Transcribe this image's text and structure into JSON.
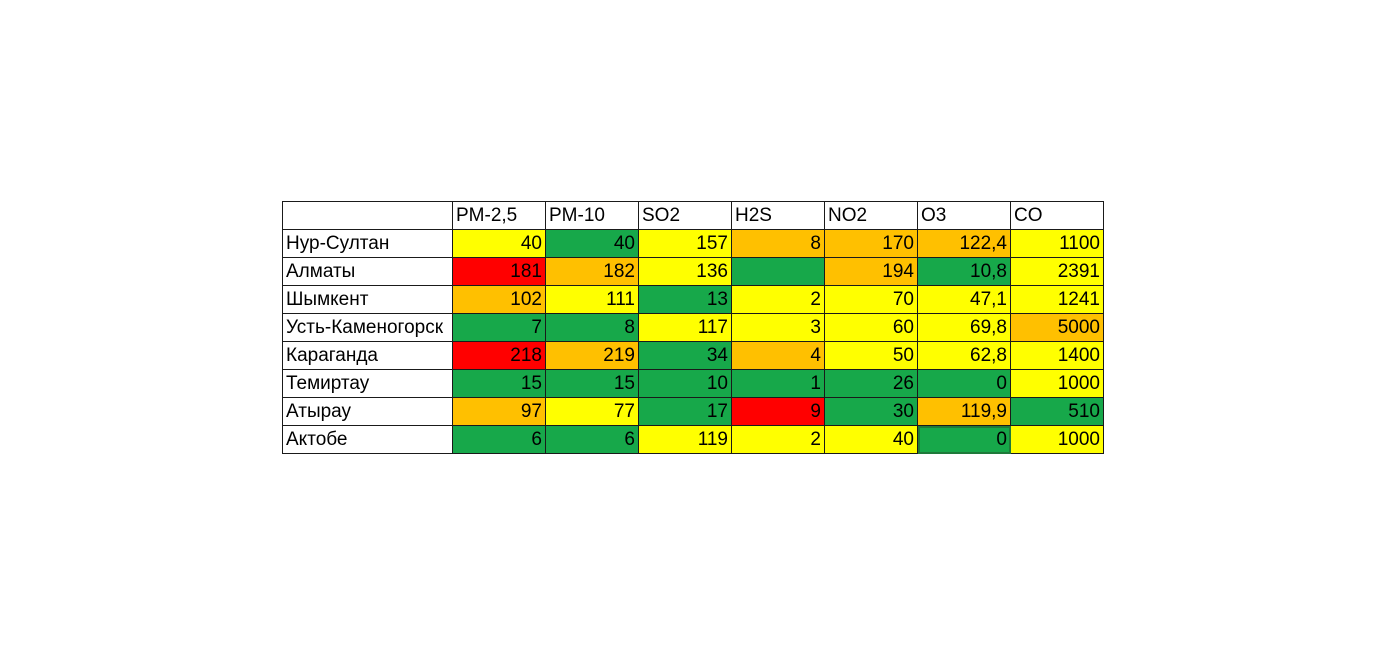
{
  "table": {
    "columns": [
      "PM-2,5",
      "PM-10",
      "SO2",
      "H2S",
      "NO2",
      "O3",
      "CO"
    ],
    "rows": [
      {
        "city": "Нур-Султан",
        "values": [
          "40",
          "40",
          "157",
          "8",
          "170",
          "122,4",
          "1100"
        ],
        "colors": [
          "yellow",
          "green",
          "yellow",
          "orange",
          "orange",
          "orange",
          "yellow"
        ]
      },
      {
        "city": "Алматы",
        "values": [
          "181",
          "182",
          "136",
          "",
          "194",
          "10,8",
          "2391"
        ],
        "colors": [
          "red",
          "orange",
          "yellow",
          "green",
          "orange",
          "green",
          "yellow"
        ]
      },
      {
        "city": "Шымкент",
        "values": [
          "102",
          "111",
          "13",
          "2",
          "70",
          "47,1",
          "1241"
        ],
        "colors": [
          "orange",
          "yellow",
          "green",
          "yellow",
          "yellow",
          "yellow",
          "yellow"
        ]
      },
      {
        "city": "Усть-Каменогорск",
        "values": [
          "7",
          "8",
          "117",
          "3",
          "60",
          "69,8",
          "5000"
        ],
        "colors": [
          "green",
          "green",
          "yellow",
          "yellow",
          "yellow",
          "yellow",
          "orange"
        ]
      },
      {
        "city": "Караганда",
        "values": [
          "218",
          "219",
          "34",
          "4",
          "50",
          "62,8",
          "1400"
        ],
        "colors": [
          "red",
          "orange",
          "green",
          "orange",
          "yellow",
          "yellow",
          "yellow"
        ]
      },
      {
        "city": "Темиртау",
        "values": [
          "15",
          "15",
          "10",
          "1",
          "26",
          "0",
          "1000"
        ],
        "colors": [
          "green",
          "green",
          "green",
          "green",
          "green",
          "green",
          "yellow"
        ]
      },
      {
        "city": "Атырау",
        "values": [
          "97",
          "77",
          "17",
          "9",
          "30",
          "119,9",
          "510"
        ],
        "colors": [
          "orange",
          "yellow",
          "green",
          "red",
          "green",
          "orange",
          "green"
        ]
      },
      {
        "city": "Актобе",
        "values": [
          "6",
          "6",
          "119",
          "2",
          "40",
          "0",
          "1000"
        ],
        "colors": [
          "green",
          "green",
          "yellow",
          "yellow",
          "yellow",
          "green",
          "yellow"
        ]
      }
    ]
  },
  "colors": {
    "green": "#17a84a",
    "yellow": "#ffff00",
    "orange": "#ffc000",
    "red": "#ff0000"
  },
  "selected_cell": {
    "row": 7,
    "col": 5
  }
}
